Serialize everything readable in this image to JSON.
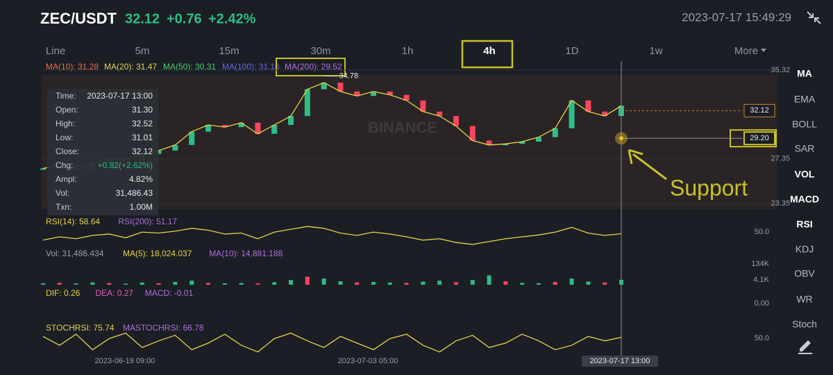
{
  "header": {
    "pair": "ZEC/USDT",
    "price": "32.12",
    "change": "+0.76",
    "change_pct": "+2.42%",
    "timestamp": "2023-07-17 15:49:29"
  },
  "timeframes": [
    "Line",
    "5m",
    "15m",
    "30m",
    "1h",
    "4h",
    "1D",
    "1w",
    "More"
  ],
  "selected_timeframe_index": 5,
  "ma_legend": [
    {
      "text": "MA(10): 31.28",
      "color": "#e8704a"
    },
    {
      "text": "MA(20): 31.47",
      "color": "#e8d44a"
    },
    {
      "text": "MA(50): 30.31",
      "color": "#4ad06a"
    },
    {
      "text": "MA(100): 31.16",
      "color": "#6a6ae8"
    },
    {
      "text": "MA(200): 29.52",
      "color": "#b070e0"
    }
  ],
  "price_chart": {
    "ylim": [
      23.35,
      35.32
    ],
    "yticks": [
      35.32,
      27.35,
      23.35
    ],
    "closes": [
      26.5,
      26.8,
      26.3,
      27.0,
      27.4,
      27.2,
      27.8,
      28.1,
      28.6,
      29.8,
      30.4,
      30.2,
      30.6,
      29.6,
      30.4,
      31.2,
      33.6,
      34.2,
      33.4,
      33.0,
      33.4,
      33.1,
      32.6,
      31.6,
      31.2,
      30.3,
      29.0,
      28.6,
      28.7,
      28.9,
      29.3,
      30.1,
      32.6,
      31.6,
      31.2,
      32.12
    ],
    "high_label": 34.78,
    "price_tags": [
      32.12,
      {
        "value": 29.2,
        "label": "29.20"
      }
    ],
    "watermark": "BINANCE",
    "annotation": "Support"
  },
  "tooltip": [
    [
      "Time:",
      "2023-07-17 13:00"
    ],
    [
      "Open:",
      "31.30"
    ],
    [
      "High:",
      "32.52"
    ],
    [
      "Low:",
      "31.01"
    ],
    [
      "Close:",
      "32.12"
    ],
    [
      "Chg:",
      "+0.82(+2.62%)"
    ],
    [
      "Ampl:",
      "4.82%"
    ],
    [
      "Vol:",
      "31,486.43"
    ],
    [
      "Txn:",
      "1.00M"
    ]
  ],
  "indicators": [
    {
      "legend": [
        {
          "text": "RSI(14): 58.64",
          "color": "#e8d44a"
        },
        {
          "text": "RSI(200): 51.17",
          "color": "#b070e0"
        }
      ],
      "levels": [
        "50.0"
      ],
      "ylim": [
        30,
        80
      ],
      "values": [
        45,
        52,
        48,
        55,
        58,
        50,
        62,
        60,
        64,
        70,
        66,
        58,
        60,
        48,
        62,
        68,
        74,
        70,
        60,
        55,
        62,
        58,
        52,
        45,
        48,
        40,
        36,
        42,
        48,
        52,
        56,
        62,
        72,
        60,
        55,
        58.64
      ],
      "color": "#e8d44a"
    },
    {
      "legend": [
        {
          "text": "Vol: 31,486.434",
          "color": "#9aa0a8"
        },
        {
          "text": "MA(5): 18,024.037",
          "color": "#e8d44a"
        },
        {
          "text": "MA(10): 14,881.188",
          "color": "#b070e0"
        }
      ],
      "levels": [
        "134K",
        "4.1K"
      ],
      "ylim": [
        0,
        156000
      ],
      "values": [
        9000,
        12000,
        8000,
        15000,
        11000,
        7000,
        14000,
        10000,
        18000,
        26000,
        12000,
        9000,
        11000,
        8000,
        16000,
        30000,
        52000,
        40000,
        22000,
        15000,
        18000,
        14000,
        12000,
        20000,
        26000,
        16000,
        30000,
        60000,
        22000,
        12000,
        10000,
        18000,
        40000,
        20000,
        14000,
        31486.434
      ],
      "color": "#2ebd85"
    },
    {
      "legend": [
        {
          "text": "DIF: 0.26",
          "color": "#e8d44a"
        },
        {
          "text": "DEA: 0.27",
          "color": "#e060b0"
        },
        {
          "text": "MACD: -0.01",
          "color": "#b070e0"
        }
      ],
      "levels": [
        "0.00"
      ]
    },
    {
      "legend": [
        {
          "text": "STOCHRSI: 75.74",
          "color": "#e8d44a"
        },
        {
          "text": "MASTOCHRSI: 66.78",
          "color": "#b070e0"
        }
      ],
      "levels": [
        "50.0"
      ],
      "ylim": [
        0,
        100
      ],
      "values": [
        80,
        40,
        90,
        20,
        70,
        95,
        30,
        60,
        85,
        20,
        50,
        90,
        40,
        10,
        70,
        95,
        60,
        30,
        80,
        50,
        20,
        70,
        90,
        40,
        10,
        60,
        85,
        30,
        50,
        90,
        60,
        20,
        40,
        80,
        60,
        75.74
      ],
      "color": "#e8d44a"
    }
  ],
  "side_menu": [
    "MA",
    "EMA",
    "BOLL",
    "SAR",
    "VOL",
    "MACD",
    "RSI",
    "KDJ",
    "OBV",
    "WR",
    "Stoch"
  ],
  "x_axis": [
    "2023-06-19 09:00",
    "2023-07-03 05:00",
    "2023-07-17 13:00"
  ]
}
